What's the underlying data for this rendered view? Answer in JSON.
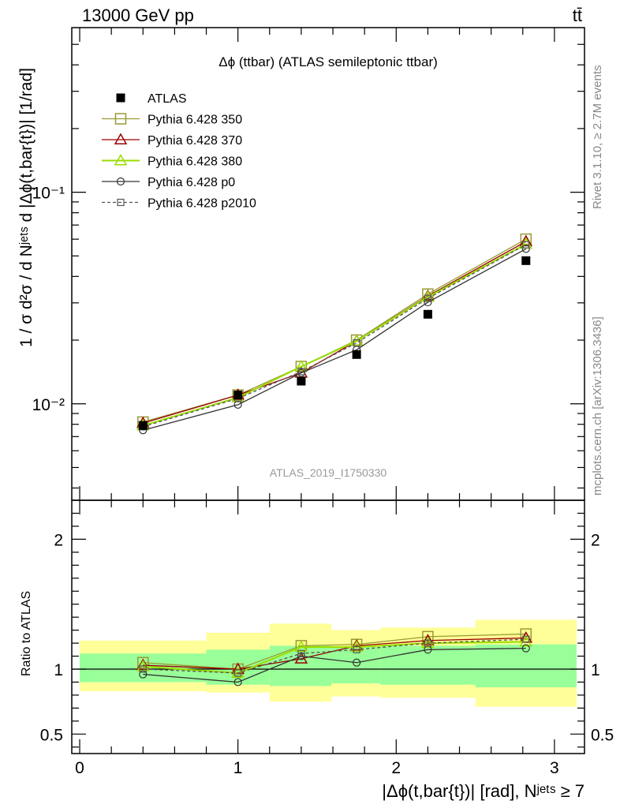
{
  "header": {
    "left": "13000 GeV pp",
    "right": "tt̄"
  },
  "side_text": {
    "rivet": "Rivet 3.1.10, ≥ 2.7M events",
    "mcplots": "mcplots.cern.ch [arXiv:1306.3436]"
  },
  "watermark": "ATLAS_2019_I1750330",
  "chart_data": [
    {
      "type": "scatter",
      "title": "Δϕ (ttbar) (ATLAS semileptonic ttbar)",
      "ylabel": "1 / σ d²σ / d Nʲᵉᵗˢ d |Δϕ(t,bar{t})| [1/rad]",
      "yscale": "log",
      "ylim": [
        0.0035,
        0.6
      ],
      "xlim": [
        -0.05,
        3.19
      ],
      "y_tick_labels": [
        "10⁻²",
        "10⁻¹"
      ],
      "legend_placement": "top-left",
      "x": [
        0.4,
        1.0,
        1.4,
        1.75,
        2.2,
        2.82
      ],
      "series": [
        {
          "name": "ATLAS",
          "style": "data",
          "color": "#000000",
          "values": [
            0.0079,
            0.011,
            0.0128,
            0.0171,
            0.0265,
            0.0475
          ]
        },
        {
          "name": "Pythia 6.428 350",
          "style": "square-open",
          "color": "#999933",
          "values": [
            0.0082,
            0.011,
            0.015,
            0.02,
            0.033,
            0.06
          ]
        },
        {
          "name": "Pythia 6.428 370",
          "style": "triangle-open",
          "color": "#990000",
          "values": [
            0.0081,
            0.011,
            0.014,
            0.0198,
            0.0323,
            0.0585
          ]
        },
        {
          "name": "Pythia 6.428 380",
          "style": "triangle-open",
          "color": "#99dd00",
          "values": [
            0.0079,
            0.0107,
            0.015,
            0.0198,
            0.032,
            0.057
          ]
        },
        {
          "name": "Pythia 6.428 p0",
          "style": "circle-open",
          "color": "#333333",
          "values": [
            0.0075,
            0.0099,
            0.014,
            0.018,
            0.0302,
            0.054
          ]
        },
        {
          "name": "Pythia 6.428 p2010",
          "style": "square-dashed",
          "color": "#555555",
          "values": [
            0.0078,
            0.0106,
            0.0142,
            0.0194,
            0.0315,
            0.0565
          ]
        }
      ]
    },
    {
      "type": "scatter",
      "title": "",
      "ylabel": "Ratio to ATLAS",
      "xlabel": "|Δϕ(t,bar{t})| [rad], Nʲᵉᵗˢ ≥ 7",
      "ylim": [
        0.35,
        2.3
      ],
      "xlim": [
        -0.05,
        3.19
      ],
      "y_ticks": [
        0.5,
        1,
        2
      ],
      "y_tick_labels": [
        "0.5",
        "1",
        "2"
      ],
      "x_ticks": [
        0,
        1,
        2,
        3
      ],
      "x_tick_labels": [
        "0",
        "1",
        "2",
        "3"
      ],
      "bands": {
        "edges": [
          0.0,
          0.8,
          1.2,
          1.59,
          1.9,
          2.5,
          3.14
        ],
        "inner": [
          [
            0.9,
            1.12
          ],
          [
            0.88,
            1.15
          ],
          [
            0.87,
            1.18
          ],
          [
            0.89,
            1.17
          ],
          [
            0.88,
            1.18
          ],
          [
            0.86,
            1.19
          ]
        ],
        "outer": [
          [
            0.83,
            1.22
          ],
          [
            0.82,
            1.28
          ],
          [
            0.75,
            1.35
          ],
          [
            0.79,
            1.3
          ],
          [
            0.78,
            1.32
          ],
          [
            0.71,
            1.38
          ]
        ],
        "inner_color": "#99ff99",
        "outer_color": "#ffff99"
      },
      "x": [
        0.4,
        1.0,
        1.4,
        1.75,
        2.2,
        2.82
      ],
      "series": [
        {
          "name": "Pythia 6.428 350",
          "style": "square-open",
          "color": "#999933",
          "values": [
            1.05,
            1.0,
            1.18,
            1.19,
            1.25,
            1.27
          ]
        },
        {
          "name": "Pythia 6.428 370",
          "style": "triangle-open",
          "color": "#990000",
          "values": [
            1.03,
            1.0,
            1.08,
            1.18,
            1.22,
            1.24
          ]
        },
        {
          "name": "Pythia 6.428 380",
          "style": "triangle-open",
          "color": "#99dd00",
          "values": [
            1.02,
            0.97,
            1.17,
            1.17,
            1.2,
            1.21
          ]
        },
        {
          "name": "Pythia 6.428 p0",
          "style": "circle-open",
          "color": "#333333",
          "values": [
            0.96,
            0.9,
            1.1,
            1.05,
            1.15,
            1.16
          ]
        },
        {
          "name": "Pythia 6.428 p2010",
          "style": "square-dashed",
          "color": "#555555",
          "values": [
            1.0,
            0.97,
            1.12,
            1.15,
            1.2,
            1.23
          ]
        }
      ]
    }
  ]
}
